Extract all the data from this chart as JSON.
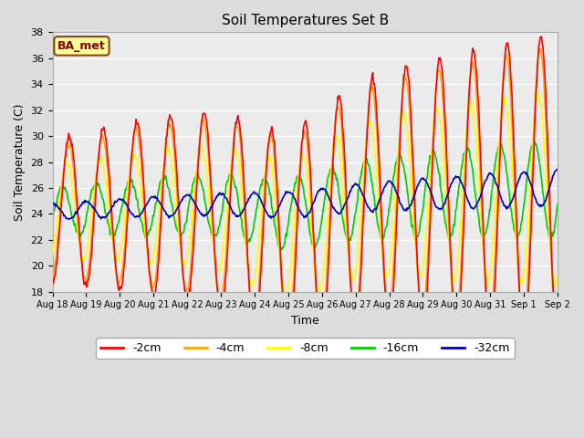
{
  "title": "Soil Temperatures Set B",
  "xlabel": "Time",
  "ylabel": "Soil Temperature (C)",
  "ylim": [
    18,
    38
  ],
  "yticks": [
    18,
    20,
    22,
    24,
    26,
    28,
    30,
    32,
    34,
    36,
    38
  ],
  "annotation_text": "BA_met",
  "annotation_color": "#8B0000",
  "annotation_bg": "#FFFF99",
  "annotation_border": "#8B4513",
  "line_colors": {
    "-2cm": "#FF0000",
    "-4cm": "#FFA500",
    "-8cm": "#FFFF00",
    "-16cm": "#00CC00",
    "-32cm": "#0000BB"
  },
  "background_color": "#DCDCDC",
  "plot_bg_color": "#EBEBEB",
  "n_days": 15,
  "pts_per_day": 48,
  "figsize": [
    6.4,
    4.8
  ],
  "dpi": 100
}
